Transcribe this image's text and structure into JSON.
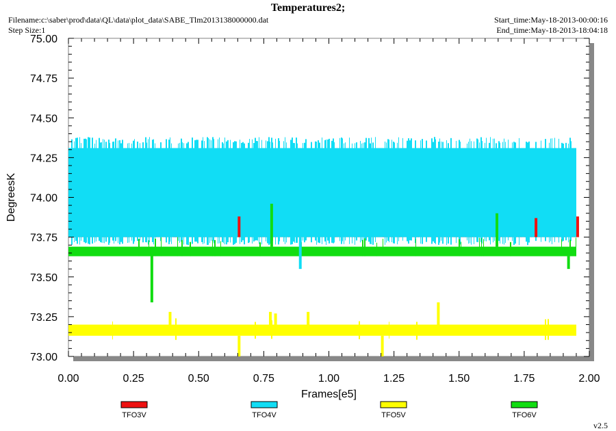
{
  "header": {
    "title": "Temperatures2;",
    "filename": "Filename:c:\\saber\\prod\\data\\QL\\data\\plot_data\\SABE_Tlm2013138000000.dat",
    "step_size": "Step Size:1",
    "start_time": "Start_time:May-18-2013-00:00:16",
    "end_time": "End_time:May-18-2013-18:04:18",
    "version": "v2.5"
  },
  "colors": {
    "TFO3V": "#ee1111",
    "TFO4V": "#11ddf5",
    "TFO5V": "#ffff00",
    "TFO6V": "#11dd11",
    "frame": "#808080",
    "shadow": "#888888"
  },
  "chart_data": {
    "type": "line",
    "title": "Temperatures2;",
    "xlabel": "Frames[e5]",
    "ylabel": "DegreesK",
    "xlim": [
      0.0,
      2.0
    ],
    "ylim": [
      73.0,
      75.0
    ],
    "xticks": [
      "0.00",
      "0.25",
      "0.50",
      "0.75",
      "1.00",
      "1.25",
      "1.50",
      "1.75",
      "2.00"
    ],
    "yticks": [
      "73.00",
      "73.25",
      "73.50",
      "73.75",
      "74.00",
      "74.25",
      "74.50",
      "74.75",
      "75.00"
    ],
    "legend_position": "bottom",
    "series": [
      {
        "name": "TFO3V",
        "x_range": [
          0.0,
          1.95
        ],
        "typical": 73.75,
        "spikes_to": 73.88,
        "band": [
          73.75,
          73.82
        ]
      },
      {
        "name": "TFO4V",
        "x_range": [
          0.0,
          1.95
        ],
        "typical": 74.0,
        "band": [
          73.75,
          74.31
        ],
        "max": 74.38,
        "min": 73.55
      },
      {
        "name": "TFO5V",
        "x_range": [
          0.0,
          1.95
        ],
        "typical": 73.17,
        "band": [
          73.13,
          73.2
        ],
        "max": 73.34,
        "min": 73.0
      },
      {
        "name": "TFO6V",
        "x_range": [
          0.0,
          1.95
        ],
        "typical": 73.66,
        "band": [
          73.63,
          73.69
        ],
        "max": 73.96,
        "min": 73.34
      }
    ]
  }
}
